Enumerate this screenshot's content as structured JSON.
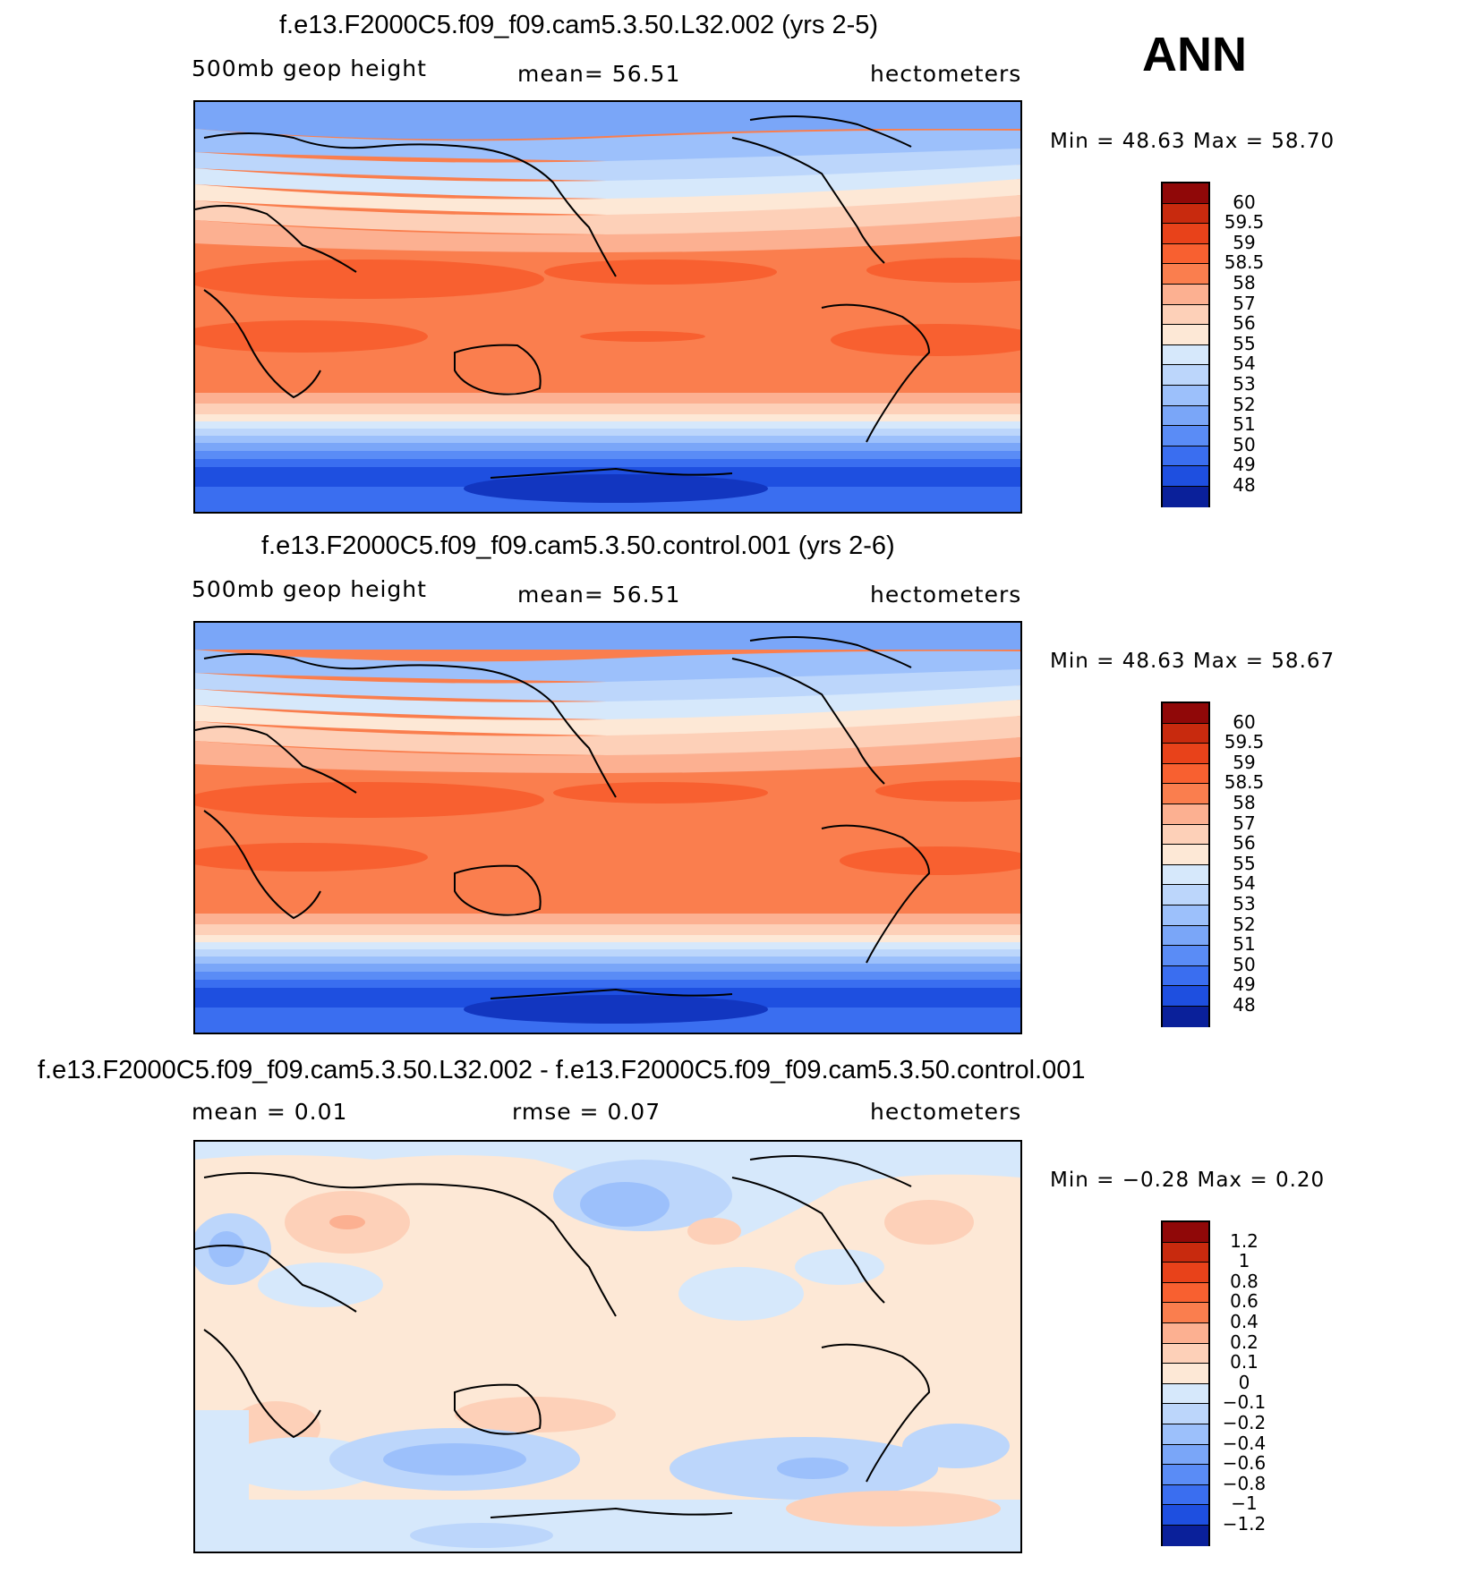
{
  "season": "ANN",
  "colors": {
    "warm": [
      "#fde8d6",
      "#fdd0b8",
      "#fcb091",
      "#fa7e4e",
      "#f86030",
      "#e8421a",
      "#c82a0e",
      "#900808"
    ],
    "cool": [
      "#d6e8fb",
      "#bcd6fb",
      "#9cc0fb",
      "#7aa6f8",
      "#5a8cf6",
      "#3a6ef0",
      "#1e4fe0",
      "#1236c0",
      "#0a209a",
      "#060c80"
    ]
  },
  "chart_data": [
    {
      "type": "heatmap",
      "title": "f.e13.F2000C5.f09_f09.cam5.3.50.L32.002 (yrs 2-5)",
      "variable": "500mb  geop  height",
      "stat_text": "mean=    56.51",
      "units": "hectometers",
      "minmax_text": "Min  =    48.63  Max  =    58.70",
      "min": 48.63,
      "max": 58.7,
      "mean": 56.51,
      "colorbar_labels": [
        "60",
        "59.5",
        "59",
        "58.5",
        "58",
        "57",
        "56",
        "55",
        "54",
        "53",
        "52",
        "51",
        "50",
        "49",
        "48"
      ]
    },
    {
      "type": "heatmap",
      "title": "f.e13.F2000C5.f09_f09.cam5.3.50.control.001 (yrs 2-6)",
      "variable": "500mb  geop  height",
      "stat_text": "mean=    56.51",
      "units": "hectometers",
      "minmax_text": "Min  =    48.63  Max  =    58.67",
      "min": 48.63,
      "max": 58.67,
      "mean": 56.51,
      "colorbar_labels": [
        "60",
        "59.5",
        "59",
        "58.5",
        "58",
        "57",
        "56",
        "55",
        "54",
        "53",
        "52",
        "51",
        "50",
        "49",
        "48"
      ]
    },
    {
      "type": "heatmap",
      "title": "f.e13.F2000C5.f09_f09.cam5.3.50.L32.002 - f.e13.F2000C5.f09_f09.cam5.3.50.control.001",
      "variable": "mean  =     0.01",
      "stat_text": "rmse  =     0.07",
      "units": "hectometers",
      "minmax_text": "Min  =   −0.28  Max  =     0.20",
      "min": -0.28,
      "max": 0.2,
      "mean": 0.01,
      "rmse": 0.07,
      "colorbar_labels": [
        "1.2",
        "1",
        "0.8",
        "0.6",
        "0.4",
        "0.2",
        "0.1",
        "0",
        "−0.1",
        "−0.2",
        "−0.4",
        "−0.6",
        "−0.8",
        "−1",
        "−1.2"
      ]
    }
  ]
}
